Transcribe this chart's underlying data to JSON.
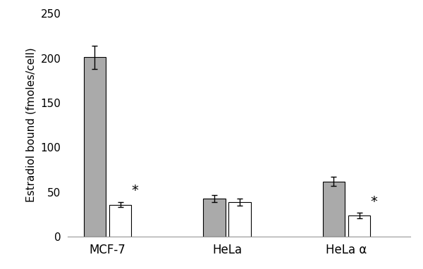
{
  "categories": [
    "MCF-7",
    "HeLa",
    "HeLa α"
  ],
  "gray_values": [
    201,
    43,
    62
  ],
  "white_values": [
    36,
    39,
    24
  ],
  "gray_errors": [
    13,
    4,
    5
  ],
  "white_errors": [
    3,
    4,
    3
  ],
  "gray_color": "#aaaaaa",
  "white_color": "#ffffff",
  "bar_edge_color": "#000000",
  "bar_width": 0.28,
  "ylabel": "Estradiol bound (fmoles/cell)",
  "ylim": [
    0,
    250
  ],
  "yticks": [
    0,
    50,
    100,
    150,
    200,
    250
  ],
  "background_color": "#ffffff",
  "error_capsize": 3,
  "error_linewidth": 1.0,
  "bar_linewidth": 0.8,
  "ylabel_fontsize": 11,
  "tick_fontsize": 11,
  "xtick_fontsize": 12
}
